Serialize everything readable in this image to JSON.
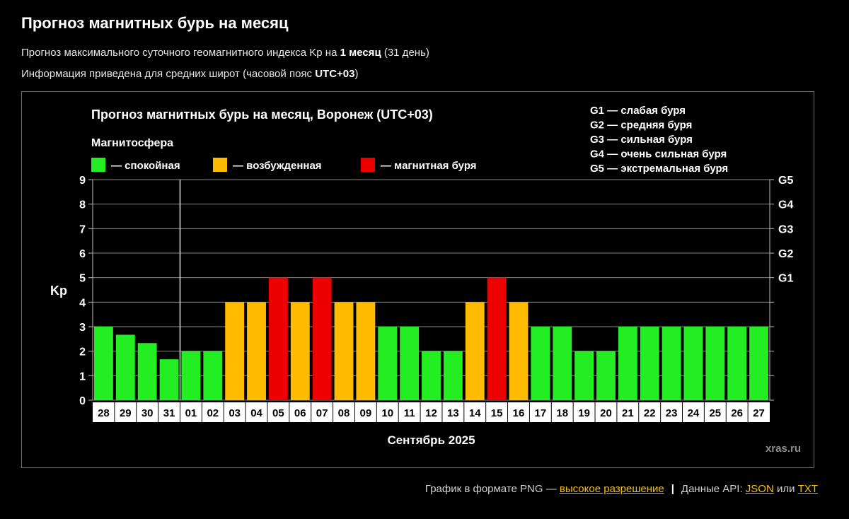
{
  "page": {
    "title": "Прогноз магнитных бурь на месяц",
    "subtitle1": {
      "prefix": "Прогноз максимального суточного геомагнитного индекса Kp на ",
      "strong": "1 месяц",
      "suffix": " (31 день)"
    },
    "subtitle2": {
      "prefix": "Информация приведена для средних широт (часовой пояс ",
      "strong": "UTC+03",
      "suffix": ")"
    }
  },
  "chart_data": {
    "type": "bar",
    "title": "Прогноз магнитных бурь на месяц, Воронеж (UTC+03)",
    "ylabel": "Kp",
    "xlabel": "Сентябрь 2025",
    "ylim": [
      0,
      9
    ],
    "yticks": [
      "0",
      "1",
      "2",
      "3",
      "4",
      "5",
      "6",
      "7",
      "8",
      "9"
    ],
    "right_axis_labels": [
      {
        "kp": 5,
        "label": "G1"
      },
      {
        "kp": 6,
        "label": "G2"
      },
      {
        "kp": 7,
        "label": "G3"
      },
      {
        "kp": 8,
        "label": "G4"
      },
      {
        "kp": 9,
        "label": "G5"
      }
    ],
    "legend_title": "Магнитосфера",
    "legend": [
      {
        "key": "calm",
        "label": "— спокойная",
        "color": "#22ee22"
      },
      {
        "key": "excited",
        "label": "— возбужденная",
        "color": "#ffbb00"
      },
      {
        "key": "storm",
        "label": "— магнитная буря",
        "color": "#ee0000"
      }
    ],
    "storm_scale": [
      "G1 — слабая буря",
      "G2 — средняя буря",
      "G3 — сильная буря",
      "G4 — очень сильная буря",
      "G5 — экстремальная буря"
    ],
    "watermark": "xras.ru",
    "separator_after_index": 3,
    "grid": true,
    "categories": [
      "28",
      "29",
      "30",
      "31",
      "01",
      "02",
      "03",
      "04",
      "05",
      "06",
      "07",
      "08",
      "09",
      "10",
      "11",
      "12",
      "13",
      "14",
      "15",
      "16",
      "17",
      "18",
      "19",
      "20",
      "21",
      "22",
      "23",
      "24",
      "25",
      "26",
      "27"
    ],
    "values": [
      3,
      2.67,
      2.33,
      1.67,
      2,
      2,
      4,
      4,
      5,
      4,
      5,
      4,
      4,
      3,
      3,
      2,
      2,
      4,
      5,
      4,
      3,
      3,
      2,
      2,
      3,
      3,
      3,
      3,
      3,
      3,
      3
    ],
    "status": [
      "calm",
      "calm",
      "calm",
      "calm",
      "calm",
      "calm",
      "excited",
      "excited",
      "storm",
      "excited",
      "storm",
      "excited",
      "excited",
      "calm",
      "calm",
      "calm",
      "calm",
      "excited",
      "storm",
      "excited",
      "calm",
      "calm",
      "calm",
      "calm",
      "calm",
      "calm",
      "calm",
      "calm",
      "calm",
      "calm",
      "calm"
    ]
  },
  "footer": {
    "png_text": "График в формате PNG — ",
    "png_link": "высокое разрешение",
    "separator": "|",
    "api_text": "Данные API: ",
    "json_link": "JSON",
    "or_text": " или ",
    "txt_link": "TXT"
  }
}
